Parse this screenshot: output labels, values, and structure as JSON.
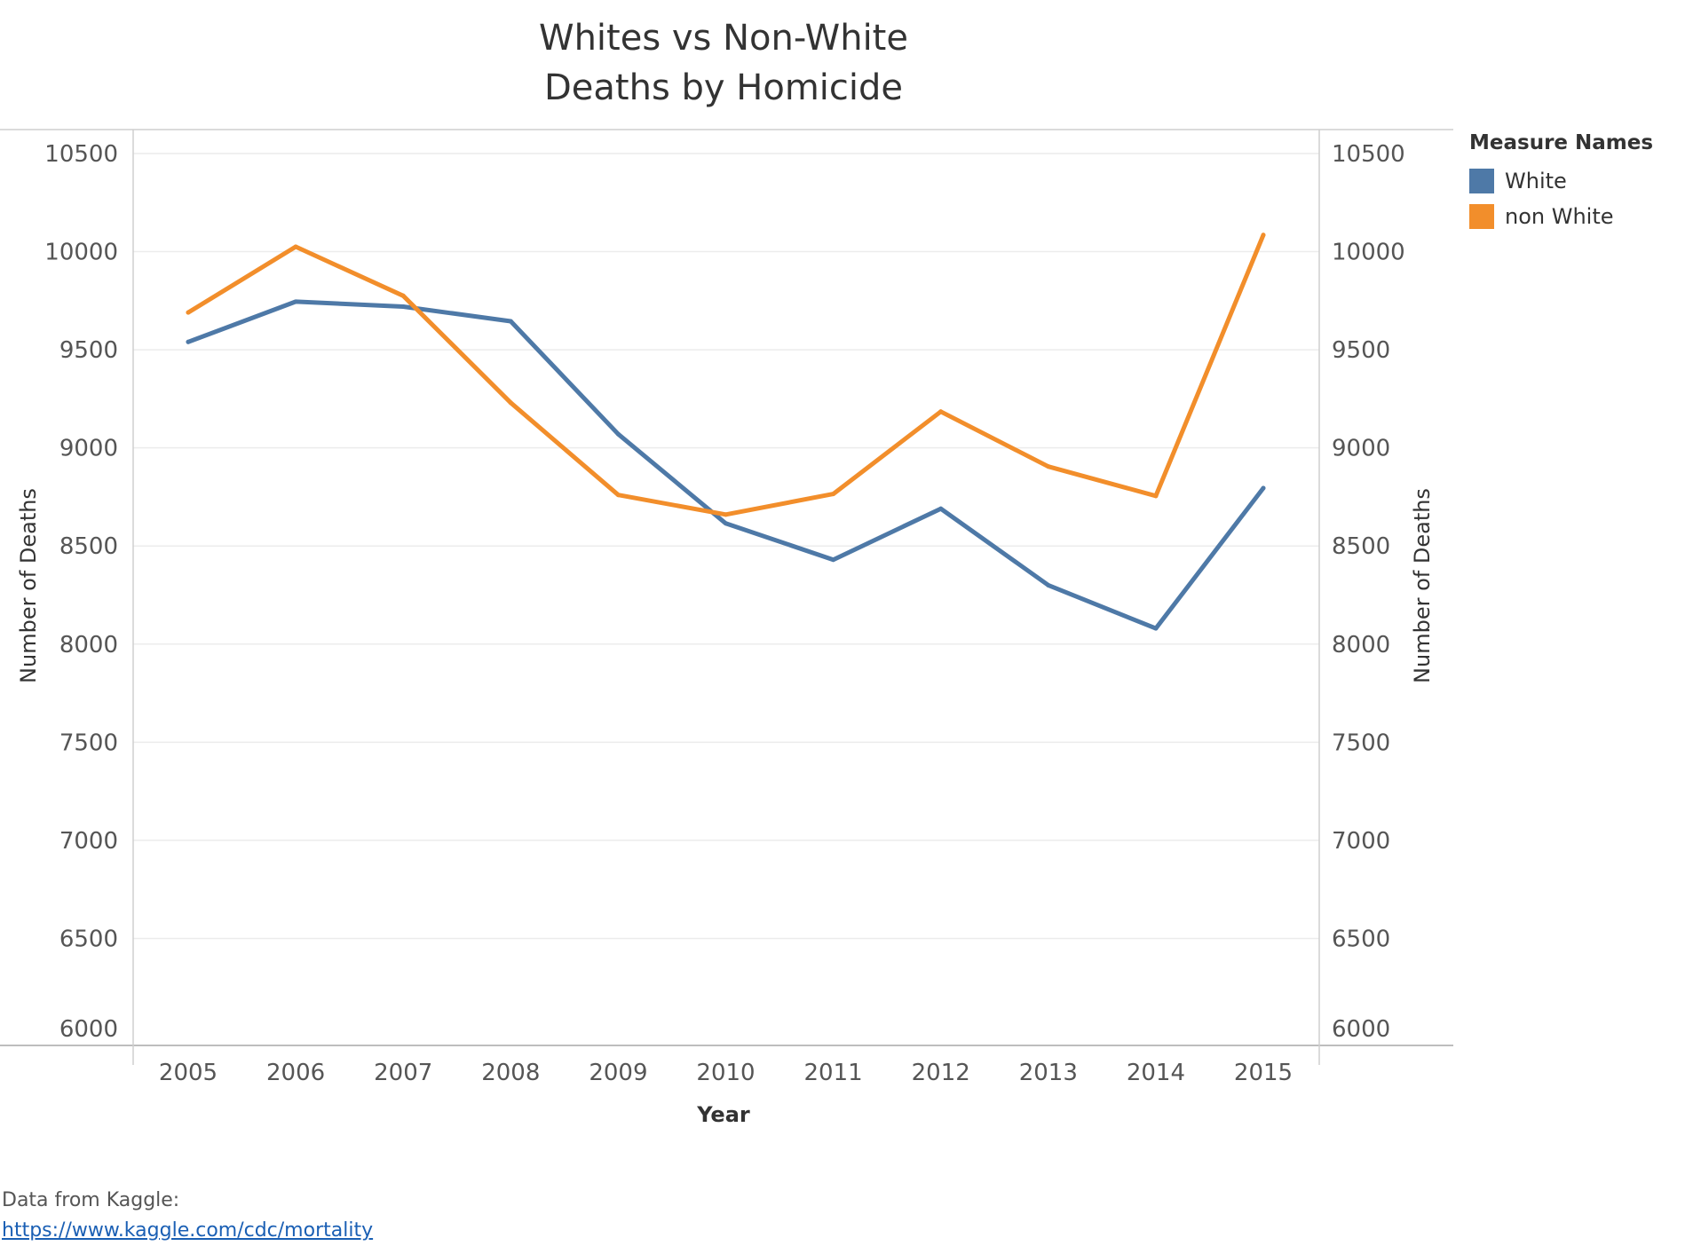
{
  "chart_data": {
    "type": "line",
    "title": [
      "Whites vs Non-White",
      "Deaths by Homicide"
    ],
    "xlabel": "Year",
    "ylabel": "Number of Deaths",
    "y2label": "Number of Deaths",
    "x": [
      "2005",
      "2006",
      "2007",
      "2008",
      "2009",
      "2010",
      "2011",
      "2012",
      "2013",
      "2014",
      "2015"
    ],
    "ylim": [
      6000,
      10500
    ],
    "yticks": [
      "6000",
      "6500",
      "7000",
      "7500",
      "8000",
      "8500",
      "9000",
      "9500",
      "10000",
      "10500"
    ],
    "grid": true,
    "legend_position": "right",
    "series": [
      {
        "name": "White",
        "color": "#4e79a7",
        "values": [
          9540,
          9745,
          9720,
          9645,
          9070,
          8615,
          8430,
          8690,
          8300,
          8080,
          8795
        ]
      },
      {
        "name": "non White",
        "color": "#f28e2b",
        "values": [
          9690,
          10025,
          9775,
          9230,
          8760,
          8660,
          8765,
          9185,
          8905,
          8755,
          10085
        ]
      }
    ]
  },
  "legend": {
    "title": "Measure Names"
  },
  "footer": {
    "source_label": "Data from Kaggle:",
    "source_link": "https://www.kaggle.com/cdc/mortality"
  }
}
